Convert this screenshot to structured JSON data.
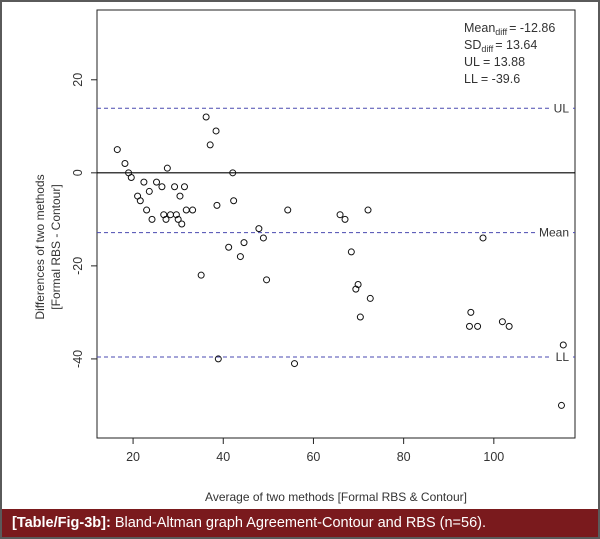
{
  "chart_data": {
    "type": "scatter",
    "xlabel": "Average of two methods [Formal RBS & Contour]",
    "ylabel_lines": [
      "Differences of two methods",
      "[Formal RBS - Contour]"
    ],
    "xlim": [
      12,
      118
    ],
    "ylim": [
      -57,
      35
    ],
    "x_ticks": [
      20,
      40,
      60,
      80,
      100
    ],
    "y_ticks": [
      20,
      0,
      -20,
      -40
    ],
    "grid": false,
    "stats": [
      {
        "label": "Mean",
        "sub": "diff",
        "value": "= -12.86"
      },
      {
        "label": "SD",
        "sub": "diff",
        "value": "= 13.64"
      },
      {
        "label": "UL",
        "sub": "",
        "value": "= 13.88"
      },
      {
        "label": "LL",
        "sub": "",
        "value": "= -39.6"
      }
    ],
    "lines": [
      {
        "name": "UL",
        "y": 13.88,
        "style": "dashed",
        "color": "#4a4ab0"
      },
      {
        "name": "Mean",
        "y": -12.86,
        "style": "dashed",
        "color": "#4a4ab0"
      },
      {
        "name": "LL",
        "y": -39.6,
        "style": "dashed",
        "color": "#4a4ab0"
      },
      {
        "name": "",
        "y": 0,
        "style": "solid",
        "color": "#000000"
      }
    ],
    "points": {
      "x": [
        16.5,
        18.2,
        19,
        19.6,
        21,
        21.6,
        22.4,
        23,
        23.6,
        24.2,
        25.2,
        26.4,
        26.8,
        27.3,
        27.6,
        28.3,
        29.2,
        29.6,
        30,
        30.4,
        30.8,
        31.4,
        31.8,
        33.2,
        35.1,
        36.2,
        37.1,
        38.4,
        38.6,
        38.9,
        41.2,
        42.1,
        42.3,
        43.8,
        44.6,
        47.9,
        48.9,
        49.6,
        54.3,
        55.8,
        65.9,
        67,
        68.4,
        69.4,
        69.9,
        70.4,
        72.1,
        72.6,
        94.6,
        94.9,
        96.4,
        97.6,
        101.9,
        103.4,
        115,
        115.4
      ],
      "y": [
        5,
        2,
        0,
        -1,
        -5,
        -6,
        -2,
        -8,
        -4,
        -10,
        -2,
        -3,
        -9,
        -10,
        1,
        -9,
        -3,
        -9,
        -10,
        -5,
        -11,
        -3,
        -8,
        -8,
        -22,
        12,
        6,
        9,
        -7,
        -40,
        -16,
        0,
        -6,
        -18,
        -15,
        -12,
        -14,
        -23,
        -8,
        -41,
        -9,
        -10,
        -17,
        -25,
        -24,
        -31,
        -8,
        -27,
        -33,
        -30,
        -33,
        -14,
        -32,
        -33,
        -50,
        -37
      ]
    }
  },
  "caption": {
    "tag": "[Table/Fig-3b]:",
    "text": "Bland-Altman graph Agreement-Contour and RBS (n=56)."
  }
}
